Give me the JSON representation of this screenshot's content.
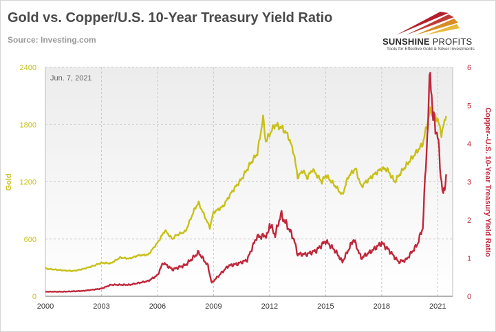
{
  "header": {
    "title": "Gold vs. Copper/U.S. 10-Year Treasury Yield Ratio",
    "source": "Source: Investing.com"
  },
  "logo": {
    "name_bold": "SUNSHINE",
    "name_light": "PROFITS",
    "tagline": "Tools for Effective Gold & Silver Investments"
  },
  "chart_data": {
    "type": "line",
    "annotation": "Jun. 7, 2021",
    "grid": true,
    "x_ticks": [
      "2000",
      "2003",
      "2006",
      "2009",
      "2012",
      "2015",
      "2018",
      "2021"
    ],
    "xlim": [
      2000.0,
      2021.8
    ],
    "y_left": {
      "label": "Gold",
      "ticks": [
        0,
        600,
        1200,
        1800,
        2400
      ],
      "ylim": [
        0,
        2400
      ],
      "color": "#c8c01a"
    },
    "y_right": {
      "label": "Copper--U.S. 10-Year Treasury Yield Ratio",
      "ticks": [
        0,
        1,
        2,
        3,
        4,
        5,
        6
      ],
      "ylim": [
        0,
        6
      ],
      "color": "#c0273a"
    },
    "series": [
      {
        "name": "Gold",
        "axis": "left",
        "color": "#c8c01a",
        "points": [
          [
            2000.0,
            290
          ],
          [
            2000.5,
            280
          ],
          [
            2001.0,
            270
          ],
          [
            2001.5,
            265
          ],
          [
            2002.0,
            285
          ],
          [
            2002.5,
            315
          ],
          [
            2003.0,
            350
          ],
          [
            2003.5,
            345
          ],
          [
            2004.0,
            405
          ],
          [
            2004.5,
            395
          ],
          [
            2005.0,
            430
          ],
          [
            2005.5,
            435
          ],
          [
            2006.0,
            560
          ],
          [
            2006.4,
            690
          ],
          [
            2006.8,
            600
          ],
          [
            2007.0,
            640
          ],
          [
            2007.5,
            680
          ],
          [
            2008.0,
            920
          ],
          [
            2008.2,
            980
          ],
          [
            2008.8,
            720
          ],
          [
            2009.0,
            880
          ],
          [
            2009.5,
            940
          ],
          [
            2010.0,
            1100
          ],
          [
            2010.5,
            1230
          ],
          [
            2011.0,
            1400
          ],
          [
            2011.35,
            1500
          ],
          [
            2011.65,
            1870
          ],
          [
            2011.8,
            1620
          ],
          [
            2012.0,
            1700
          ],
          [
            2012.3,
            1800
          ],
          [
            2012.7,
            1760
          ],
          [
            2013.0,
            1680
          ],
          [
            2013.3,
            1500
          ],
          [
            2013.5,
            1250
          ],
          [
            2013.8,
            1320
          ],
          [
            2014.0,
            1240
          ],
          [
            2014.3,
            1330
          ],
          [
            2014.8,
            1200
          ],
          [
            2015.0,
            1270
          ],
          [
            2015.5,
            1160
          ],
          [
            2015.9,
            1060
          ],
          [
            2016.2,
            1250
          ],
          [
            2016.6,
            1340
          ],
          [
            2016.9,
            1150
          ],
          [
            2017.5,
            1260
          ],
          [
            2018.0,
            1340
          ],
          [
            2018.3,
            1330
          ],
          [
            2018.7,
            1200
          ],
          [
            2019.0,
            1290
          ],
          [
            2019.5,
            1420
          ],
          [
            2019.9,
            1520
          ],
          [
            2020.2,
            1600
          ],
          [
            2020.6,
            1950
          ],
          [
            2021.0,
            1850
          ],
          [
            2021.2,
            1700
          ],
          [
            2021.45,
            1890
          ]
        ]
      },
      {
        "name": "Copper/U.S. 10-Year Treasury Yield Ratio",
        "axis": "right",
        "color": "#c0273a",
        "points": [
          [
            2000.0,
            0.12
          ],
          [
            2001.0,
            0.12
          ],
          [
            2002.0,
            0.14
          ],
          [
            2003.0,
            0.2
          ],
          [
            2003.5,
            0.3
          ],
          [
            2004.5,
            0.3
          ],
          [
            2005.5,
            0.4
          ],
          [
            2006.0,
            0.55
          ],
          [
            2006.3,
            0.88
          ],
          [
            2006.8,
            0.7
          ],
          [
            2007.5,
            0.82
          ],
          [
            2008.2,
            1.15
          ],
          [
            2008.7,
            0.8
          ],
          [
            2008.9,
            0.35
          ],
          [
            2009.3,
            0.55
          ],
          [
            2009.8,
            0.8
          ],
          [
            2010.3,
            0.85
          ],
          [
            2010.8,
            0.95
          ],
          [
            2011.3,
            1.55
          ],
          [
            2011.9,
            1.6
          ],
          [
            2012.0,
            1.9
          ],
          [
            2012.3,
            1.6
          ],
          [
            2012.6,
            2.15
          ],
          [
            2013.0,
            1.8
          ],
          [
            2013.3,
            1.5
          ],
          [
            2013.5,
            1.1
          ],
          [
            2014.0,
            1.1
          ],
          [
            2014.5,
            1.2
          ],
          [
            2015.0,
            1.45
          ],
          [
            2015.5,
            1.2
          ],
          [
            2015.9,
            0.9
          ],
          [
            2016.5,
            1.5
          ],
          [
            2016.9,
            1.0
          ],
          [
            2017.5,
            1.2
          ],
          [
            2018.0,
            1.4
          ],
          [
            2018.4,
            1.2
          ],
          [
            2018.9,
            0.9
          ],
          [
            2019.3,
            0.95
          ],
          [
            2019.9,
            1.35
          ],
          [
            2020.2,
            1.8
          ],
          [
            2020.4,
            3.8
          ],
          [
            2020.6,
            5.9
          ],
          [
            2020.75,
            4.7
          ],
          [
            2021.0,
            4.2
          ],
          [
            2021.2,
            3.0
          ],
          [
            2021.3,
            2.6
          ],
          [
            2021.45,
            3.2
          ]
        ]
      }
    ]
  }
}
